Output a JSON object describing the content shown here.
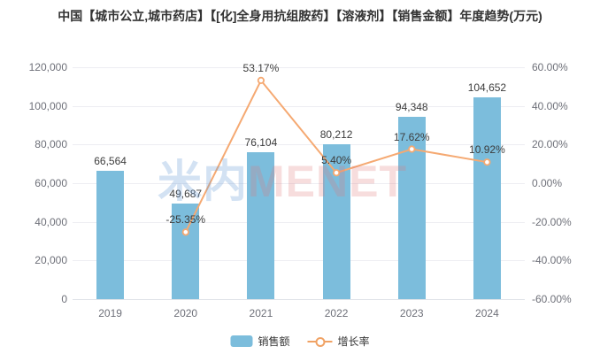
{
  "title": "中国【城市公立,城市药店】【[化]全身用抗组胺药】【溶液剂】【销售金额】年度趋势(万元)",
  "watermark": {
    "cn": "米内",
    "en": "MENET"
  },
  "legend": {
    "bar_label": "销售额",
    "line_label": "增长率"
  },
  "colors": {
    "bar": "#7cbddc",
    "line": "#f5a972",
    "marker_fill": "#ffffff",
    "grid": "#ededf2",
    "axis_line": "#dfe3e8",
    "axis_tick_text": "#6e7079",
    "data_label_text": "#3c3c3c",
    "title_text": "#333333",
    "watermark_cn": "rgba(110,160,214,0.30)",
    "watermark_en": "rgba(224,120,120,0.25)"
  },
  "chart_data": {
    "type": "bar",
    "subtype": "bar+line dual-axis combo",
    "title": "中国【城市公立,城市药店】【[化]全身用抗组胺药】【溶液剂】【销售金额】年度趋势(万元)",
    "categories": [
      "2019",
      "2020",
      "2021",
      "2022",
      "2023",
      "2024"
    ],
    "series": [
      {
        "name": "销售额",
        "type": "bar",
        "axis": "left",
        "values": [
          66564,
          49687,
          76104,
          80212,
          94348,
          104652
        ],
        "labels": [
          "66,564",
          "49,687",
          "76,104",
          "80,212",
          "94,348",
          "104,652"
        ]
      },
      {
        "name": "增长率",
        "type": "line",
        "axis": "right",
        "values": [
          null,
          -25.35,
          53.17,
          5.4,
          17.62,
          10.92
        ],
        "labels": [
          null,
          "-25.35%",
          "53.17%",
          "5.40%",
          "17.62%",
          "10.92%"
        ]
      }
    ],
    "left_axis": {
      "min": 0,
      "max": 120000,
      "interval": 20000,
      "tick_labels_top_to_bottom": [
        "120,000",
        "100,000",
        "80,000",
        "60,000",
        "40,000",
        "20,000",
        "0"
      ]
    },
    "right_axis": {
      "min": -60,
      "max": 60,
      "interval": 20,
      "tick_labels_top_to_bottom": [
        "60.00%",
        "40.00%",
        "20.00%",
        "0.00%",
        "-20.00%",
        "-40.00%",
        "-60.00%"
      ]
    },
    "grid": true,
    "legend_position": "bottom",
    "xlabel": "",
    "ylabel_left": "万元",
    "ylabel_right": "%"
  }
}
